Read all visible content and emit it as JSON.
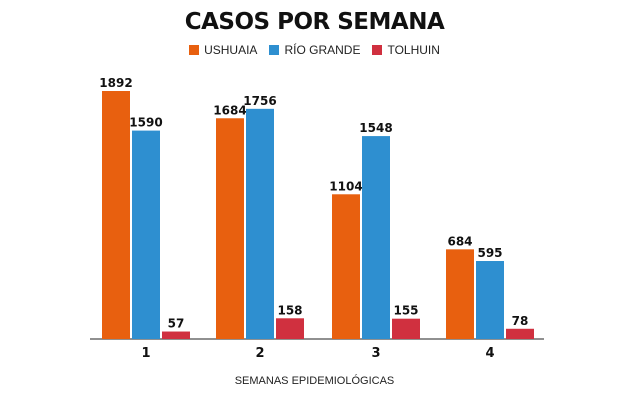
{
  "chart_data": {
    "type": "bar",
    "title": "CASOS POR SEMANA",
    "xlabel": "SEMANAS EPIDEMIOLÓGICAS",
    "ylabel": "",
    "categories": [
      "1",
      "2",
      "3",
      "4"
    ],
    "series": [
      {
        "name": "USHUAIA",
        "color": "#e8600f",
        "values": [
          1892,
          1684,
          1104,
          684
        ]
      },
      {
        "name": "RÍO GRANDE",
        "color": "#2e8fd0",
        "values": [
          1590,
          1756,
          1548,
          595
        ]
      },
      {
        "name": "TOLHUIN",
        "color": "#d0303f",
        "values": [
          57,
          158,
          155,
          78
        ]
      }
    ],
    "ylim": [
      0,
      1892
    ],
    "grid": false,
    "legend_position": "top-center",
    "data_labels": true
  }
}
